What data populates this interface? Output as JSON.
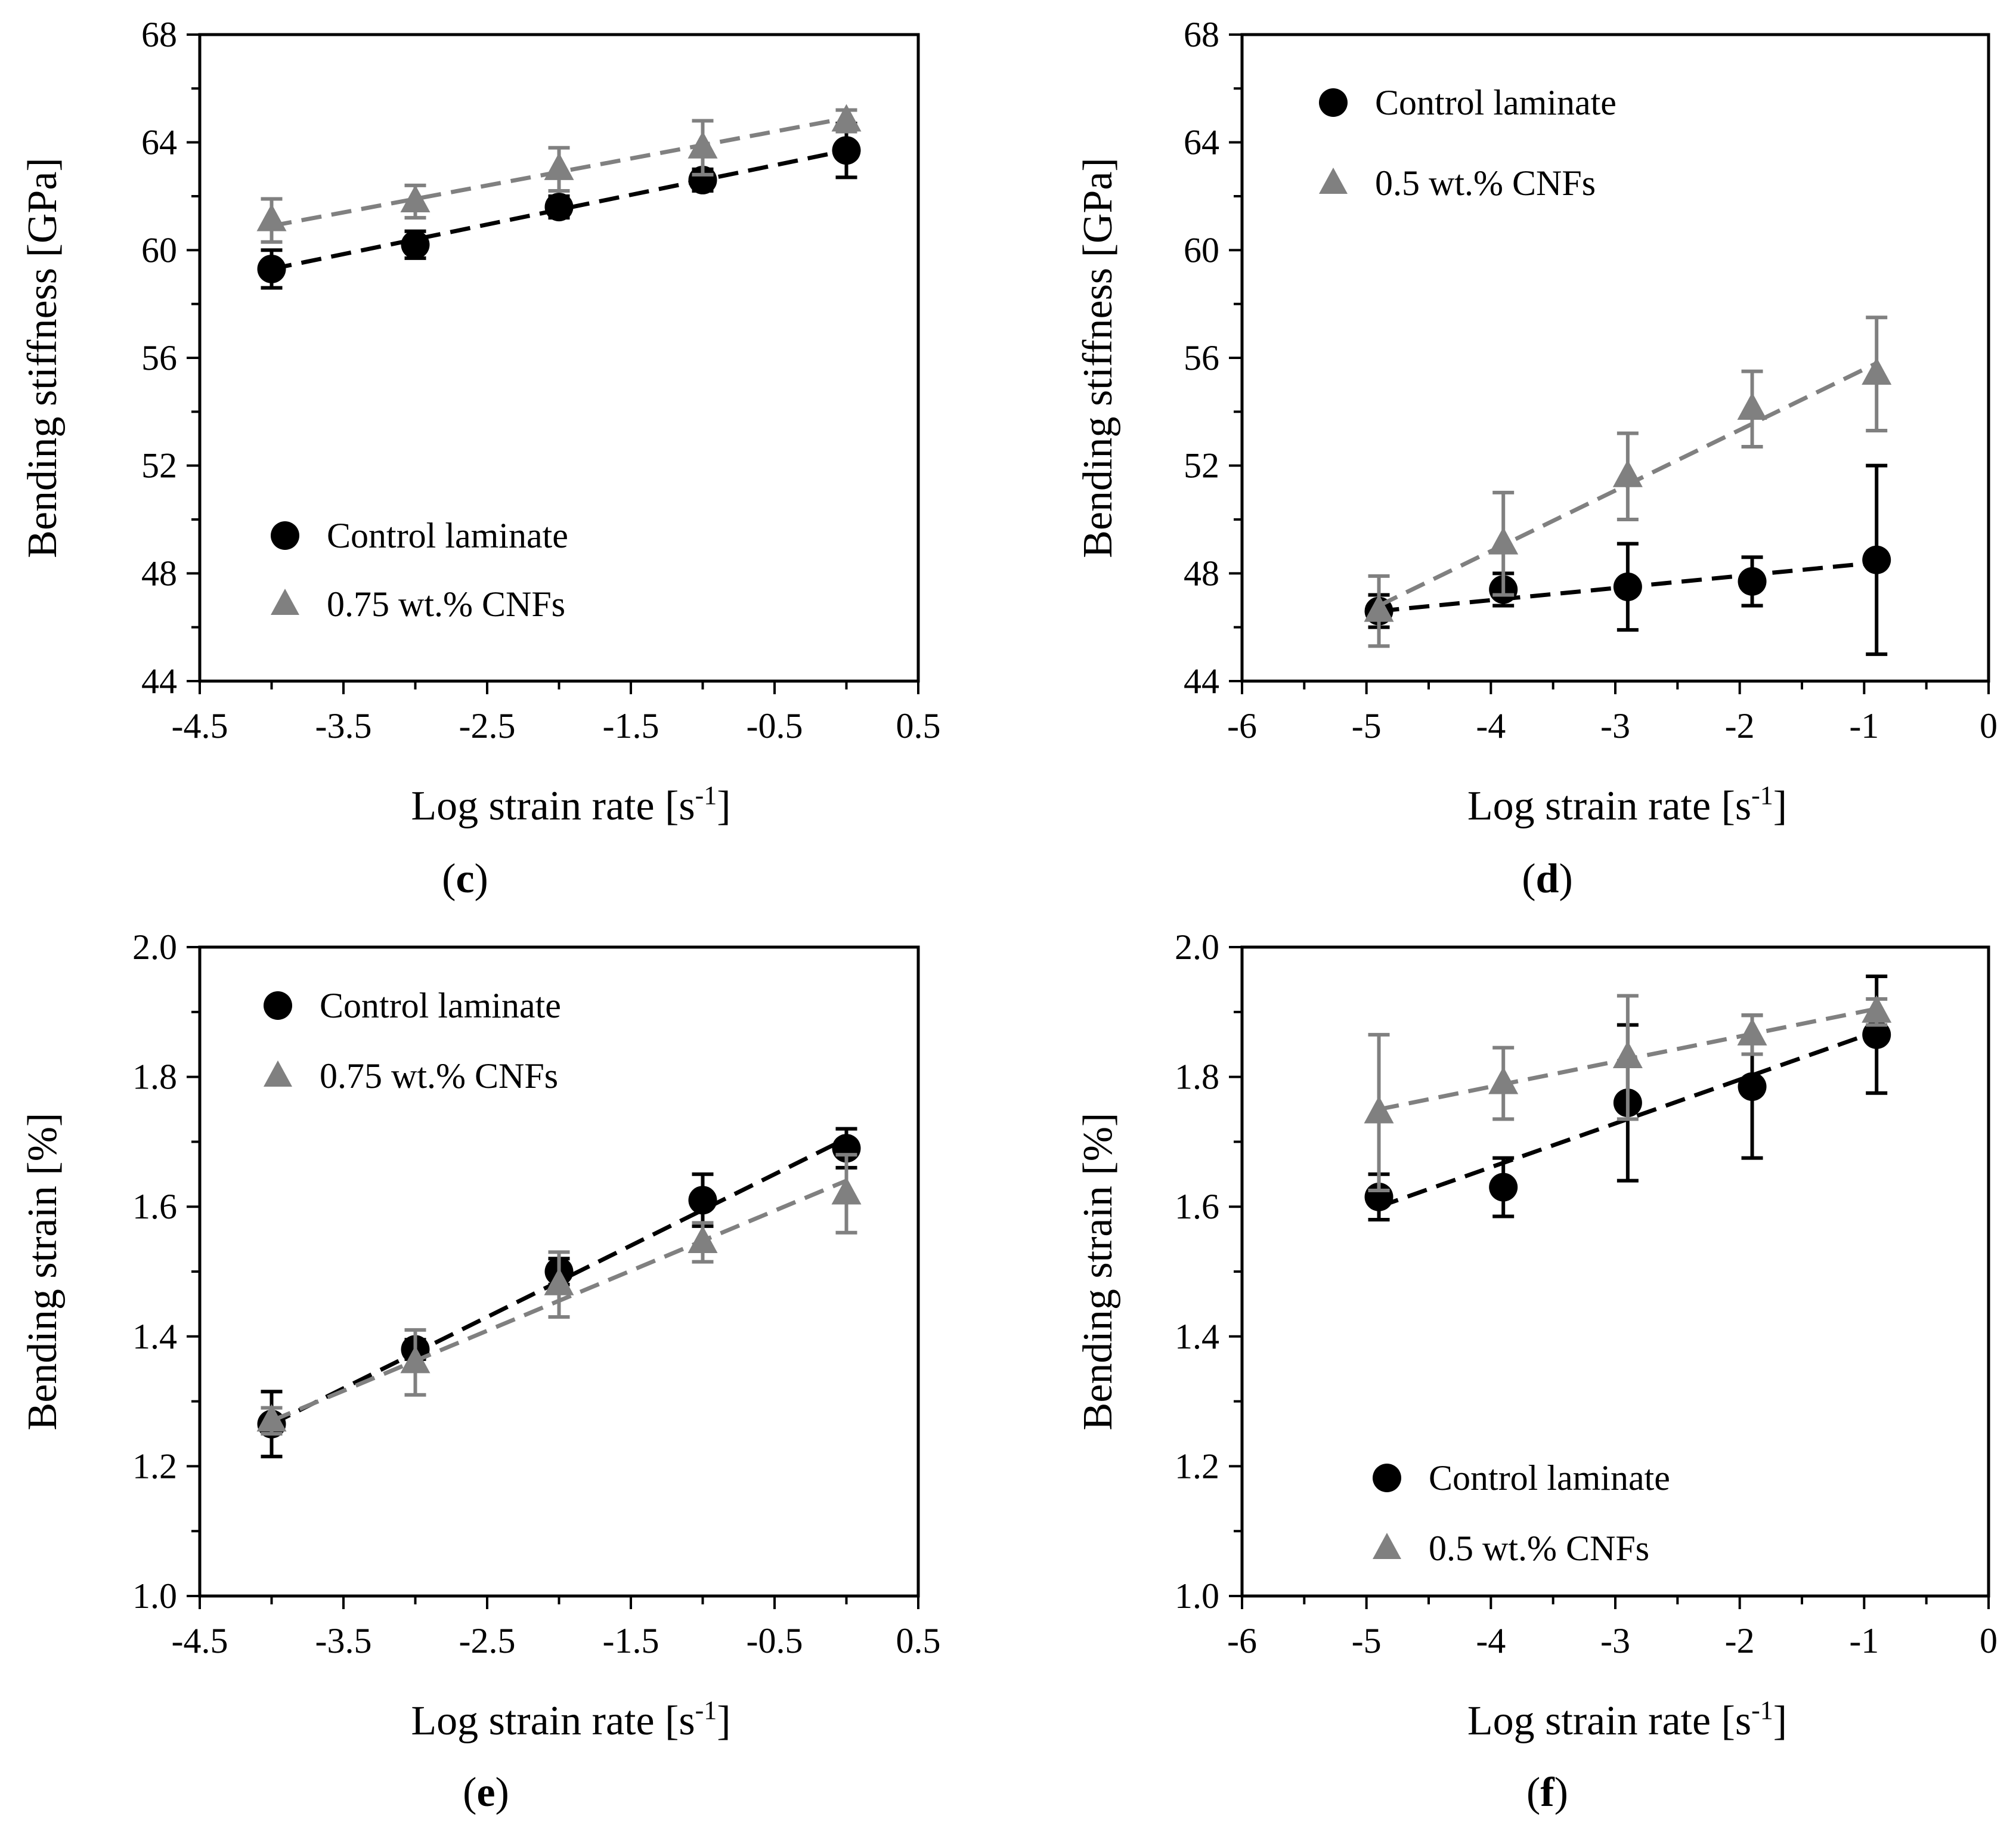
{
  "colors": {
    "control": "#000000",
    "cnf": "#808080",
    "frame": "#000000"
  },
  "chart_data": [
    {
      "id": "c",
      "type": "scatter",
      "label_letter": "c",
      "xlabel": "Log strain rate",
      "xlabel_unit_open": "[s",
      "xlabel_unit_sup": "-1",
      "xlabel_unit_close": "]",
      "ylabel": "Bending stiffness [GPa]",
      "xlim": [
        -4.5,
        0.5
      ],
      "ylim": [
        44,
        68
      ],
      "xticks": [
        "-4.5",
        "-3.5",
        "-2.5",
        "-1.5",
        "-0.5",
        "0.5"
      ],
      "yticks": [
        "44",
        "48",
        "52",
        "56",
        "60",
        "64",
        "68"
      ],
      "legend_position": "bottom-left",
      "series": [
        {
          "name": "Control laminate",
          "marker": "circle",
          "color": "#000000",
          "x": [
            -4.0,
            -3.0,
            -2.0,
            -1.0,
            0.0
          ],
          "y": [
            59.3,
            60.2,
            61.6,
            62.6,
            63.7
          ],
          "err": [
            0.7,
            0.5,
            0.4,
            0.4,
            1.0
          ],
          "fit": [
            [
              -4.0,
              59.3
            ],
            [
              0.0,
              63.7
            ]
          ]
        },
        {
          "name": "0.75 wt.% CNFs",
          "marker": "triangle",
          "color": "#808080",
          "x": [
            -4.0,
            -3.0,
            -2.0,
            -1.0,
            0.0
          ],
          "y": [
            61.1,
            61.8,
            63.0,
            63.8,
            64.8
          ],
          "err": [
            0.8,
            0.6,
            0.8,
            1.0,
            0.4
          ],
          "fit": [
            [
              -4.0,
              60.9
            ],
            [
              0.0,
              64.9
            ]
          ]
        }
      ]
    },
    {
      "id": "d",
      "type": "scatter",
      "label_letter": "d",
      "xlabel": "Log strain rate",
      "xlabel_unit_open": "[s",
      "xlabel_unit_sup": "-1",
      "xlabel_unit_close": "]",
      "ylabel": "Bending stiffness [GPa]",
      "xlim": [
        -6,
        0
      ],
      "ylim": [
        44,
        68
      ],
      "xticks": [
        "-6",
        "-5",
        "-4",
        "-3",
        "-2",
        "-1",
        "0"
      ],
      "yticks": [
        "44",
        "48",
        "52",
        "56",
        "60",
        "64",
        "68"
      ],
      "legend_position": "top-left",
      "series": [
        {
          "name": "Control laminate",
          "marker": "circle",
          "color": "#000000",
          "x": [
            -4.9,
            -3.9,
            -2.9,
            -1.9,
            -0.9
          ],
          "y": [
            46.6,
            47.4,
            47.5,
            47.7,
            48.5
          ],
          "err": [
            0.6,
            0.6,
            1.6,
            0.9,
            3.5
          ],
          "fit": [
            [
              -4.9,
              46.6
            ],
            [
              -0.9,
              48.4
            ]
          ]
        },
        {
          "name": "0.5 wt.% CNFs",
          "marker": "triangle",
          "color": "#808080",
          "x": [
            -4.9,
            -3.9,
            -2.9,
            -1.9,
            -0.9
          ],
          "y": [
            46.6,
            49.1,
            51.6,
            54.1,
            55.4
          ],
          "err": [
            1.3,
            1.9,
            1.6,
            1.4,
            2.1
          ],
          "fit": [
            [
              -4.9,
              46.8
            ],
            [
              -0.9,
              55.8
            ]
          ]
        }
      ]
    },
    {
      "id": "e",
      "type": "scatter",
      "label_letter": "e",
      "xlabel": "Log strain rate",
      "xlabel_unit_open": "[s",
      "xlabel_unit_sup": "-1",
      "xlabel_unit_close": "]",
      "ylabel": "Bending strain [%]",
      "xlim": [
        -4.5,
        0.5
      ],
      "ylim": [
        1.0,
        2.0
      ],
      "xticks": [
        "-4.5",
        "-3.5",
        "-2.5",
        "-1.5",
        "-0.5",
        "0.5"
      ],
      "yticks": [
        "1.0",
        "1.2",
        "1.4",
        "1.6",
        "1.8",
        "2.0"
      ],
      "legend_position": "top-left",
      "series": [
        {
          "name": "Control laminate",
          "marker": "circle",
          "color": "#000000",
          "x": [
            -4.0,
            -3.0,
            -2.0,
            -1.0,
            0.0
          ],
          "y": [
            1.265,
            1.38,
            1.5,
            1.61,
            1.69
          ],
          "err": [
            0.05,
            0.015,
            0.02,
            0.04,
            0.03
          ],
          "fit": [
            [
              -4.0,
              1.265
            ],
            [
              0.0,
              1.705
            ]
          ]
        },
        {
          "name": "0.75 wt.% CNFs",
          "marker": "triangle",
          "color": "#808080",
          "x": [
            -4.0,
            -3.0,
            -2.0,
            -1.0,
            0.0
          ],
          "y": [
            1.27,
            1.36,
            1.48,
            1.545,
            1.62
          ],
          "err": [
            0.02,
            0.05,
            0.05,
            0.03,
            0.06
          ],
          "fit": [
            [
              -4.0,
              1.27
            ],
            [
              0.0,
              1.64
            ]
          ]
        }
      ]
    },
    {
      "id": "f",
      "type": "scatter",
      "label_letter": "f",
      "xlabel": "Log strain rate",
      "xlabel_unit_open": "[s",
      "xlabel_unit_sup": "-1",
      "xlabel_unit_close": "]",
      "ylabel": "Bending strain [%]",
      "xlim": [
        -6,
        0
      ],
      "ylim": [
        1.0,
        2.0
      ],
      "xticks": [
        "-6",
        "-5",
        "-4",
        "-3",
        "-2",
        "-1",
        "0"
      ],
      "yticks": [
        "1.0",
        "1.2",
        "1.4",
        "1.6",
        "1.8",
        "2.0"
      ],
      "legend_position": "bottom-left",
      "series": [
        {
          "name": "Control laminate",
          "marker": "circle",
          "color": "#000000",
          "x": [
            -4.9,
            -3.9,
            -2.9,
            -1.9,
            -0.9
          ],
          "y": [
            1.615,
            1.63,
            1.76,
            1.785,
            1.865
          ],
          "err": [
            0.035,
            0.045,
            0.12,
            0.11,
            0.09
          ],
          "fit": [
            [
              -4.9,
              1.6
            ],
            [
              -0.9,
              1.87
            ]
          ]
        },
        {
          "name": "0.5 wt.% CNFs",
          "marker": "triangle",
          "color": "#808080",
          "x": [
            -4.9,
            -3.9,
            -2.9,
            -1.9,
            -0.9
          ],
          "y": [
            1.745,
            1.79,
            1.83,
            1.865,
            1.9
          ],
          "err": [
            0.12,
            0.055,
            0.095,
            0.03,
            0.02
          ],
          "fit": [
            [
              -4.9,
              1.75
            ],
            [
              -0.9,
              1.905
            ]
          ]
        }
      ]
    }
  ]
}
